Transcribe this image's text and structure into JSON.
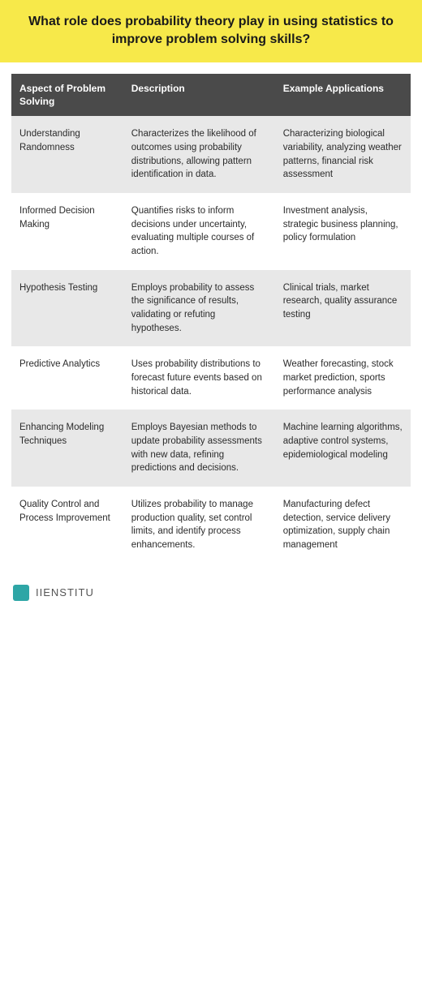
{
  "header": {
    "title": "What role does probability theory play in using statistics to improve problem solving skills?",
    "background_color": "#f7e94a",
    "text_color": "#1a1a1a",
    "font_weight": 700,
    "font_size_pt": 12
  },
  "table": {
    "type": "table",
    "header_bg": "#4a4a4a",
    "header_text_color": "#ffffff",
    "row_odd_bg": "#e8e8e8",
    "row_even_bg": "#ffffff",
    "cell_text_color": "#2b2b2b",
    "cell_font_size_pt": 9,
    "header_font_size_pt": 9,
    "column_widths": [
      "28%",
      "38%",
      "34%"
    ],
    "columns": [
      "Aspect of Problem Solving",
      "Description",
      "Example Applications"
    ],
    "rows": [
      {
        "aspect": "Understanding Randomness",
        "description": "Characterizes the likelihood of outcomes using probability distributions, allowing pattern identification in data.",
        "examples": "Characterizing biological variability, analyzing weather patterns, financial risk assessment"
      },
      {
        "aspect": "Informed Decision Making",
        "description": "Quantifies risks to inform decisions under uncertainty, evaluating multiple courses of action.",
        "examples": "Investment analysis, strategic business planning, policy formulation"
      },
      {
        "aspect": "Hypothesis Testing",
        "description": "Employs probability to assess the significance of results, validating or refuting hypotheses.",
        "examples": "Clinical trials, market research, quality assurance testing"
      },
      {
        "aspect": "Predictive Analytics",
        "description": "Uses probability distributions to forecast future events based on historical data.",
        "examples": "Weather forecasting, stock market prediction, sports performance analysis"
      },
      {
        "aspect": "Enhancing Modeling Techniques",
        "description": "Employs Bayesian methods to update probability assessments with new data, refining predictions and decisions.",
        "examples": "Machine learning algorithms, adaptive control systems, epidemiological modeling"
      },
      {
        "aspect": "Quality Control and Process Improvement",
        "description": "Utilizes probability to manage production quality, set control limits, and identify process enhancements.",
        "examples": "Manufacturing defect detection, service delivery optimization, supply chain management"
      }
    ]
  },
  "footer": {
    "brand": "IIENSTITU",
    "logo_color": "#2ea6a6",
    "brand_text_color": "#555555"
  }
}
